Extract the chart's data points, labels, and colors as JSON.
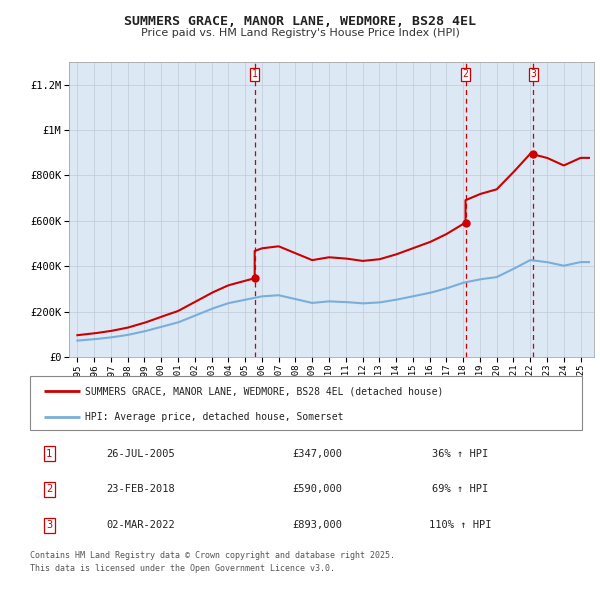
{
  "title": "SUMMERS GRACE, MANOR LANE, WEDMORE, BS28 4EL",
  "subtitle": "Price paid vs. HM Land Registry's House Price Index (HPI)",
  "background_color": "#dce9f5",
  "plot_bg_color": "#dce9f5",
  "legend_line1": "SUMMERS GRACE, MANOR LANE, WEDMORE, BS28 4EL (detached house)",
  "legend_line2": "HPI: Average price, detached house, Somerset",
  "sale_color": "#cc0000",
  "hpi_color": "#7aadda",
  "transactions": [
    {
      "num": 1,
      "date_label": "26-JUL-2005",
      "price": 347000,
      "pct": "36%",
      "x_year": 2005.57
    },
    {
      "num": 2,
      "date_label": "23-FEB-2018",
      "price": 590000,
      "pct": "69%",
      "x_year": 2018.14
    },
    {
      "num": 3,
      "date_label": "02-MAR-2022",
      "price": 893000,
      "pct": "110%",
      "x_year": 2022.17
    }
  ],
  "footer1": "Contains HM Land Registry data © Crown copyright and database right 2025.",
  "footer2": "This data is licensed under the Open Government Licence v3.0.",
  "ylim": [
    0,
    1300000
  ],
  "xlim": [
    1994.5,
    2025.8
  ],
  "yticks": [
    0,
    200000,
    400000,
    600000,
    800000,
    1000000,
    1200000
  ],
  "ytick_labels": [
    "£0",
    "£200K",
    "£400K",
    "£600K",
    "£800K",
    "£1M",
    "£1.2M"
  ],
  "xticks": [
    1995,
    1996,
    1997,
    1998,
    1999,
    2000,
    2001,
    2002,
    2003,
    2004,
    2005,
    2006,
    2007,
    2008,
    2009,
    2010,
    2011,
    2012,
    2013,
    2014,
    2015,
    2016,
    2017,
    2018,
    2019,
    2020,
    2021,
    2022,
    2023,
    2024,
    2025
  ],
  "hpi_years": [
    1995,
    1996,
    1997,
    1998,
    1999,
    2000,
    2001,
    2002,
    2003,
    2004,
    2005,
    2006,
    2007,
    2008,
    2009,
    2010,
    2011,
    2012,
    2013,
    2014,
    2015,
    2016,
    2017,
    2018,
    2019,
    2020,
    2021,
    2022,
    2023,
    2024,
    2025
  ],
  "hpi_values": [
    72000,
    78000,
    86000,
    97000,
    113000,
    133000,
    152000,
    182000,
    212000,
    237000,
    252000,
    267000,
    272000,
    255000,
    238000,
    245000,
    242000,
    236000,
    240000,
    252000,
    267000,
    282000,
    302000,
    327000,
    342000,
    352000,
    388000,
    427000,
    418000,
    402000,
    418000
  ]
}
